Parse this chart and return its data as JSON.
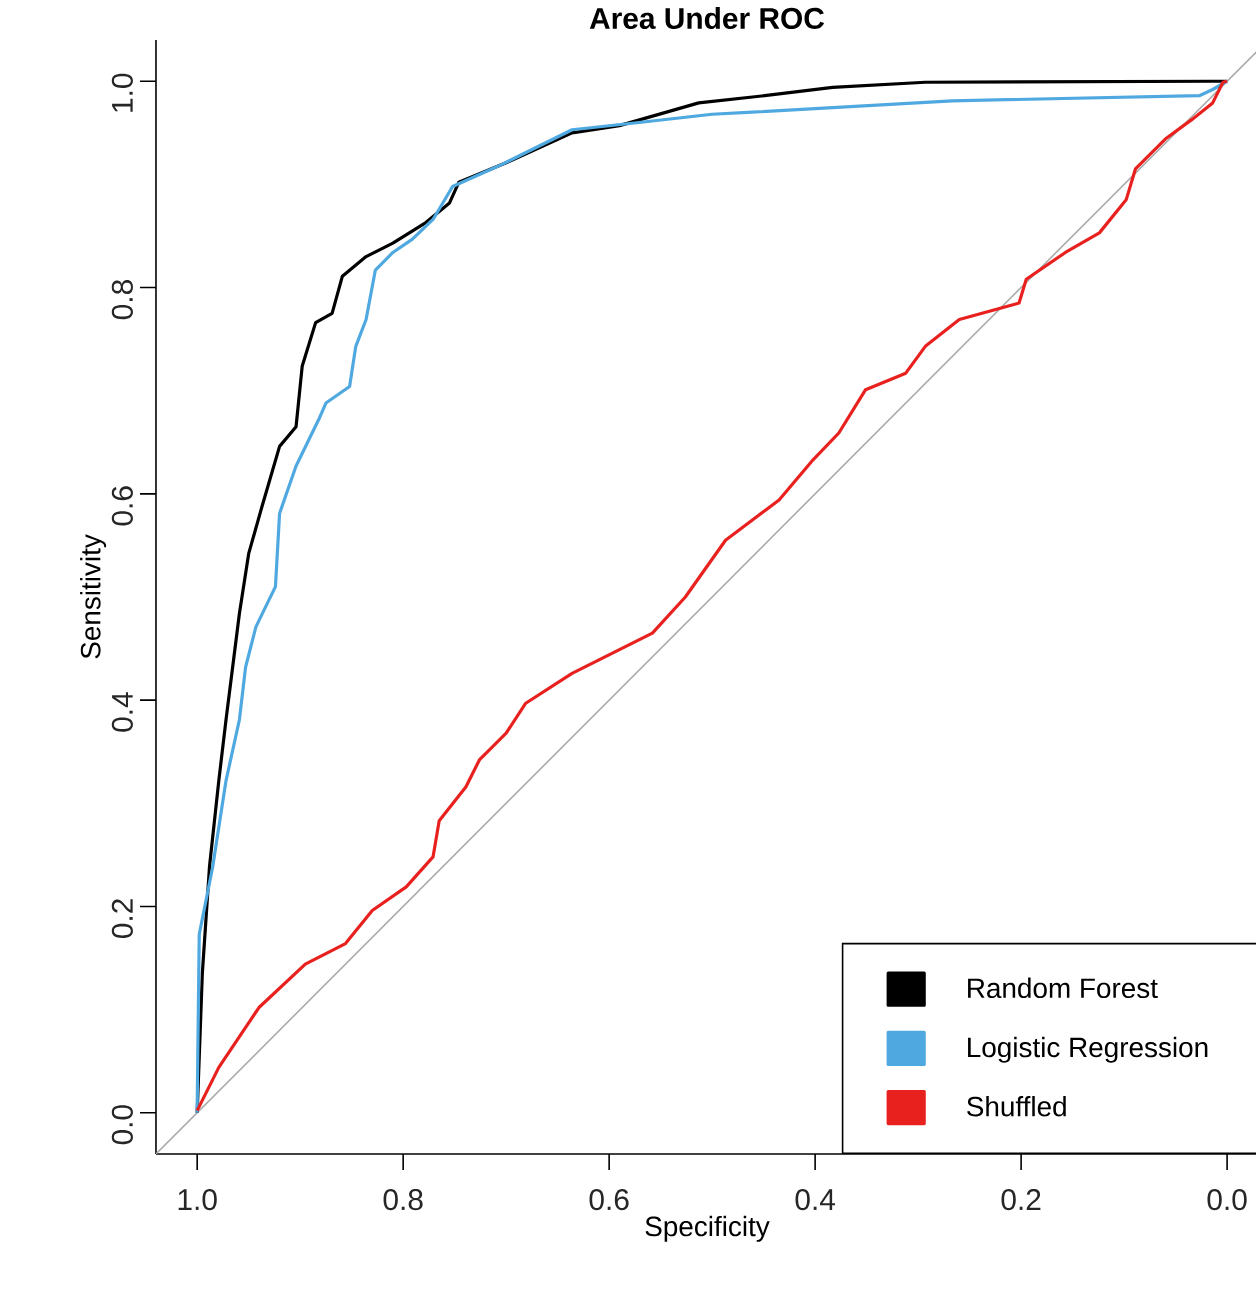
{
  "chart_data": {
    "type": "line",
    "title": "Area Under ROC",
    "xlabel": "Specificity",
    "ylabel": "Sensitivity",
    "xlim": [
      1.04,
      -0.03
    ],
    "ylim": [
      -0.04,
      1.04
    ],
    "xticks": [
      {
        "value": 1,
        "label": "1.0"
      },
      {
        "value": 0.8,
        "label": "0.8"
      },
      {
        "value": 0.6,
        "label": "0.6"
      },
      {
        "value": 0.4,
        "label": "0.4"
      },
      {
        "value": 0.2,
        "label": "0.2"
      },
      {
        "value": 0,
        "label": "0.0"
      }
    ],
    "yticks": [
      {
        "value": 0,
        "label": "0.0"
      },
      {
        "value": 0.2,
        "label": "0.2"
      },
      {
        "value": 0.4,
        "label": "0.4"
      },
      {
        "value": 0.6,
        "label": "0.6"
      },
      {
        "value": 0.8,
        "label": "0.8"
      },
      {
        "value": 1,
        "label": "1.0"
      }
    ],
    "legend": "bottom right",
    "series": [
      {
        "type": "line",
        "color": "#aaaaaa",
        "x": [
          1.04,
          -0.03
        ],
        "values": [
          -0.04,
          1.03
        ]
      },
      {
        "name": "Random Forest",
        "color": "#000000",
        "x": [
          1.0,
          0.995,
          0.988,
          0.979,
          0.972,
          0.959,
          0.95,
          0.937,
          0.92,
          0.904,
          0.898,
          0.885,
          0.869,
          0.859,
          0.836,
          0.81,
          0.778,
          0.755,
          0.746,
          0.7,
          0.636,
          0.59,
          0.513,
          0.449,
          0.383,
          0.293,
          0.014,
          0.0
        ],
        "values": [
          0.0,
          0.135,
          0.239,
          0.322,
          0.381,
          0.484,
          0.542,
          0.588,
          0.646,
          0.665,
          0.724,
          0.766,
          0.775,
          0.811,
          0.83,
          0.843,
          0.863,
          0.882,
          0.902,
          0.921,
          0.95,
          0.957,
          0.979,
          0.986,
          0.994,
          0.999,
          1.0,
          1.0
        ]
      },
      {
        "name": "Logistic Regression",
        "color": "#4fa9e0",
        "x": [
          1.0,
          1.0,
          0.998,
          0.985,
          0.972,
          0.959,
          0.953,
          0.943,
          0.924,
          0.92,
          0.904,
          0.882,
          0.875,
          0.852,
          0.846,
          0.836,
          0.827,
          0.81,
          0.791,
          0.771,
          0.752,
          0.707,
          0.636,
          0.571,
          0.5,
          0.461,
          0.267,
          0.027,
          0.014,
          0.0
        ],
        "values": [
          0.0,
          0.006,
          0.173,
          0.238,
          0.322,
          0.381,
          0.432,
          0.471,
          0.51,
          0.581,
          0.627,
          0.672,
          0.688,
          0.704,
          0.743,
          0.769,
          0.817,
          0.834,
          0.847,
          0.866,
          0.898,
          0.918,
          0.953,
          0.96,
          0.968,
          0.97,
          0.981,
          0.986,
          0.992,
          1.0
        ]
      },
      {
        "name": "Shuffled",
        "color": "#e8211f",
        "x": [
          1.0,
          0.979,
          0.94,
          0.895,
          0.856,
          0.83,
          0.797,
          0.771,
          0.765,
          0.739,
          0.726,
          0.7,
          0.681,
          0.636,
          0.59,
          0.558,
          0.526,
          0.487,
          0.435,
          0.402,
          0.377,
          0.351,
          0.312,
          0.293,
          0.26,
          0.202,
          0.195,
          0.157,
          0.124,
          0.098,
          0.089,
          0.06,
          0.034,
          0.014,
          0.004,
          0.0
        ],
        "values": [
          0.002,
          0.044,
          0.102,
          0.144,
          0.164,
          0.196,
          0.219,
          0.248,
          0.283,
          0.316,
          0.342,
          0.368,
          0.397,
          0.426,
          0.449,
          0.465,
          0.5,
          0.555,
          0.594,
          0.633,
          0.659,
          0.701,
          0.717,
          0.743,
          0.769,
          0.785,
          0.808,
          0.834,
          0.853,
          0.885,
          0.915,
          0.944,
          0.963,
          0.979,
          0.999,
          1.0
        ]
      }
    ]
  }
}
